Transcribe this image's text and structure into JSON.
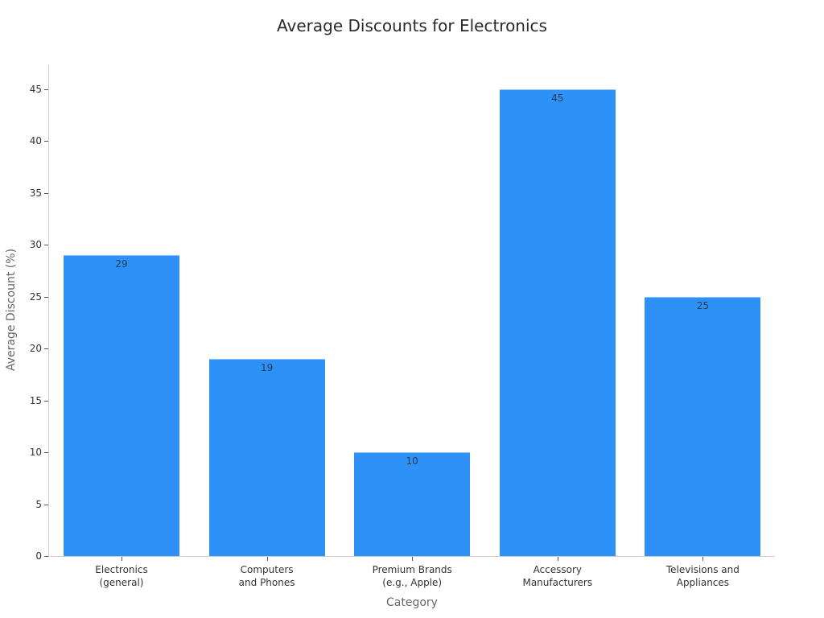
{
  "chart_data": {
    "type": "bar",
    "title": "Average Discounts for Electronics",
    "xlabel": "Category",
    "ylabel": "Average Discount (%)",
    "categories": [
      "Electronics\n(general)",
      "Computers\nand Phones",
      "Premium Brands\n(e.g., Apple)",
      "Accessory\nManufacturers",
      "Televisions and\nAppliances"
    ],
    "values": [
      29,
      19,
      10,
      45,
      25
    ],
    "data_labels": [
      "29",
      "19",
      "10",
      "45",
      "25"
    ],
    "ylim": [
      0,
      47.4
    ],
    "yticks": [
      0,
      5,
      10,
      15,
      20,
      25,
      30,
      35,
      40,
      45
    ],
    "ytick_labels": [
      "0",
      "5",
      "10",
      "15",
      "20",
      "25",
      "30",
      "35",
      "40",
      "45"
    ],
    "grid": false,
    "legend": null,
    "bar_color": "#2e91f7"
  }
}
